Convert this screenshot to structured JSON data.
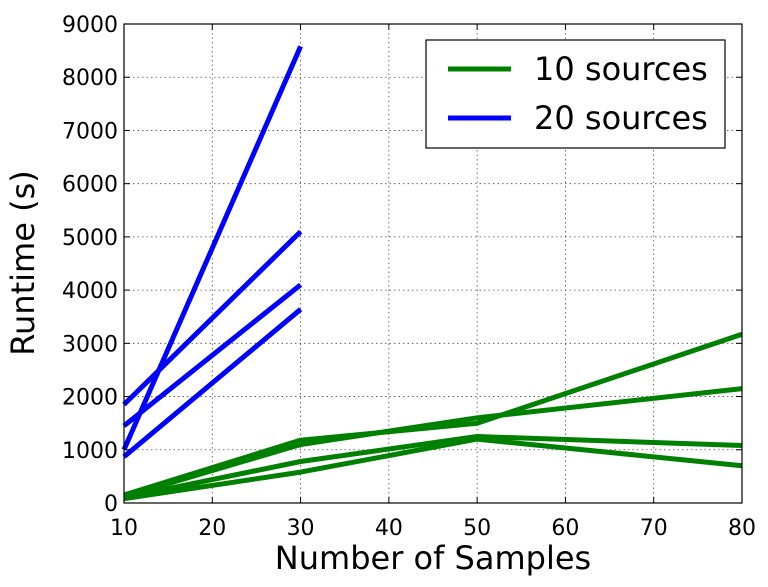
{
  "chart_data": {
    "type": "line",
    "title": "",
    "xlabel": "Number of Samples",
    "ylabel": "Runtime (s)",
    "xlim": [
      10,
      80
    ],
    "ylim": [
      0,
      9000
    ],
    "xticks": [
      10,
      20,
      30,
      40,
      50,
      60,
      70,
      80
    ],
    "yticks": [
      0,
      1000,
      2000,
      3000,
      4000,
      5000,
      6000,
      7000,
      8000,
      9000
    ],
    "grid": true,
    "legend": {
      "placement": "top-right",
      "entries": [
        {
          "label": "10 sources",
          "color": "#008000"
        },
        {
          "label": "20 sources",
          "color": "#0000ff"
        }
      ]
    },
    "series": [
      {
        "group": "20 sources",
        "color": "#0000ff",
        "x": [
          10,
          30
        ],
        "y": [
          1000,
          8580
        ]
      },
      {
        "group": "20 sources",
        "color": "#0000ff",
        "x": [
          10,
          30
        ],
        "y": [
          1850,
          5100
        ]
      },
      {
        "group": "20 sources",
        "color": "#0000ff",
        "x": [
          10,
          30
        ],
        "y": [
          1450,
          4100
        ]
      },
      {
        "group": "20 sources",
        "color": "#0000ff",
        "x": [
          10,
          30
        ],
        "y": [
          870,
          3640
        ]
      },
      {
        "group": "10 sources",
        "color": "#008000",
        "x": [
          10,
          30,
          50,
          80
        ],
        "y": [
          150,
          1180,
          1500,
          3170
        ]
      },
      {
        "group": "10 sources",
        "color": "#008000",
        "x": [
          10,
          30,
          50,
          80
        ],
        "y": [
          120,
          1100,
          1600,
          2150
        ]
      },
      {
        "group": "10 sources",
        "color": "#008000",
        "x": [
          10,
          30,
          50,
          80
        ],
        "y": [
          100,
          780,
          1250,
          1080
        ]
      },
      {
        "group": "10 sources",
        "color": "#008000",
        "x": [
          10,
          30,
          50,
          80
        ],
        "y": [
          80,
          580,
          1200,
          700
        ]
      }
    ]
  }
}
